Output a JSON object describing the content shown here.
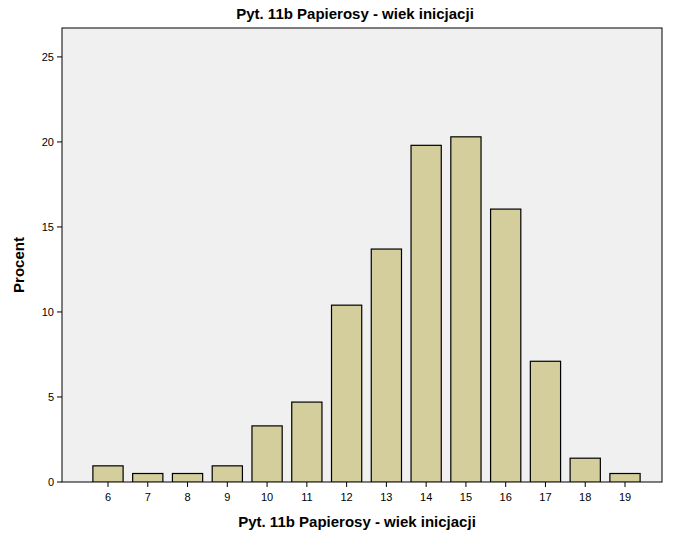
{
  "chart_data": {
    "type": "bar",
    "title": "Pyt. 11b Papierosy - wiek inicjacji",
    "x_label": "Pyt. 11b Papierosy - wiek inicjacji",
    "y_label": "Procent",
    "categories": [
      "6",
      "7",
      "8",
      "9",
      "10",
      "11",
      "12",
      "13",
      "14",
      "15",
      "16",
      "17",
      "18",
      "19"
    ],
    "values": [
      0.95,
      0.5,
      0.5,
      0.95,
      3.3,
      4.7,
      10.4,
      13.7,
      19.8,
      20.3,
      16.05,
      7.1,
      1.4,
      0.5
    ],
    "color": "#d3ce9b",
    "ylim": [
      0,
      26.7
    ],
    "yticks": [
      0,
      5,
      10,
      15,
      20,
      25
    ],
    "grid": false
  }
}
